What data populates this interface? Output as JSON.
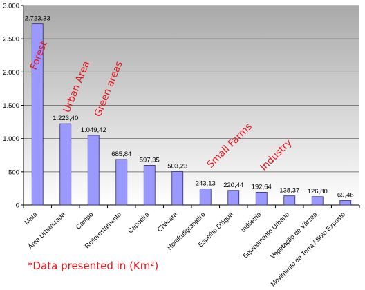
{
  "chart_data": {
    "type": "bar",
    "categories": [
      "Mata",
      "Área Urbanizada",
      "Campo",
      "Reflorestamento",
      "Capoeira",
      "Chácara",
      "Hortifrutigranjeiro",
      "Espelho D'água",
      "Indústria",
      "Equipamento Urbano",
      "Vegetação de Várzea",
      "Movimento de Terra / Solo Exposto"
    ],
    "values": [
      2723.33,
      1223.4,
      1049.42,
      685.84,
      597.35,
      503.23,
      243.13,
      220.44,
      192.64,
      138.37,
      126.8,
      69.46
    ],
    "value_labels": [
      "2.723,33",
      "1.223,40",
      "1.049,42",
      "685,84",
      "597,35",
      "503,23",
      "243,13",
      "220,44",
      "192,64",
      "138,37",
      "126,80",
      "69,46"
    ],
    "yticks": [
      0,
      500,
      1000,
      1500,
      2000,
      2500,
      3000
    ],
    "ytick_labels": [
      "0",
      "500",
      "1.000",
      "1.500",
      "2.000",
      "2.500",
      "3.000"
    ],
    "ylim": [
      0,
      3000
    ],
    "grid": true,
    "title": "",
    "xlabel": "",
    "ylabel": "",
    "bar_color": "#9999ff",
    "plot_background_top": "#a9a9a9",
    "plot_background_bottom": "#ffffff",
    "annotation_color": "#e8141c",
    "annotations": [
      {
        "text": "Forest",
        "category_index": 0,
        "rotation": -68
      },
      {
        "text": "Urban Area",
        "category_index": 1,
        "rotation": -68
      },
      {
        "text": "Green areas",
        "category_index": 2,
        "rotation": -68
      },
      {
        "text": "Small Farms",
        "category_index": 6,
        "rotation": -45
      },
      {
        "text": "Industry",
        "category_index": 8,
        "rotation": -45
      }
    ]
  },
  "footnote": "*Data presented in (Km²)"
}
